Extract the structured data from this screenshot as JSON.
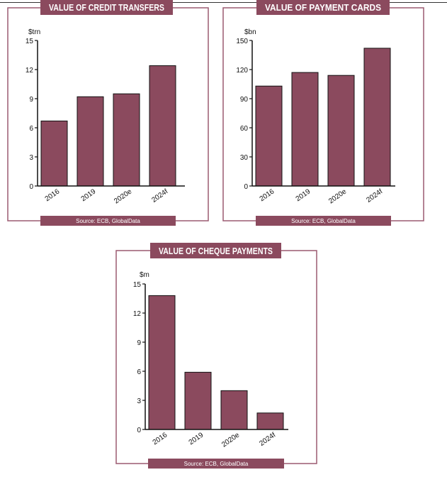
{
  "colors": {
    "bar": "#8b4a5e",
    "frame": "#9b5a70",
    "banner": "#8b4a5e",
    "axis": "#111111"
  },
  "chart_data": [
    {
      "type": "bar",
      "title": "VALUE OF CREDIT TRANSFERS",
      "ylabel": "$trn",
      "source": "Source: ECB, GlobalData",
      "categories": [
        "2016",
        "2019",
        "2020e",
        "2024f"
      ],
      "values": [
        6.7,
        9.2,
        9.5,
        12.4
      ],
      "ylim": [
        0,
        15
      ],
      "yticks": [
        0,
        3,
        6,
        9,
        12,
        15
      ],
      "grid": false
    },
    {
      "type": "bar",
      "title": "VALUE OF PAYMENT CARDS",
      "ylabel": "$bn",
      "source": "Source: ECB, GlobalData",
      "categories": [
        "2016",
        "2019",
        "2020e",
        "2024f"
      ],
      "values": [
        103,
        117,
        114,
        142
      ],
      "ylim": [
        0,
        150
      ],
      "yticks": [
        0,
        30,
        60,
        90,
        120,
        150
      ],
      "grid": false
    },
    {
      "type": "bar",
      "title": "VALUE OF CHEQUE PAYMENTS",
      "ylabel": "$m",
      "source": "Source: ECB, GlobalData",
      "categories": [
        "2016",
        "2019",
        "2020e",
        "2024f"
      ],
      "values": [
        13.8,
        5.9,
        4.0,
        1.7
      ],
      "ylim": [
        0,
        15
      ],
      "yticks": [
        0,
        3,
        6,
        9,
        12,
        15
      ],
      "grid": false
    }
  ]
}
